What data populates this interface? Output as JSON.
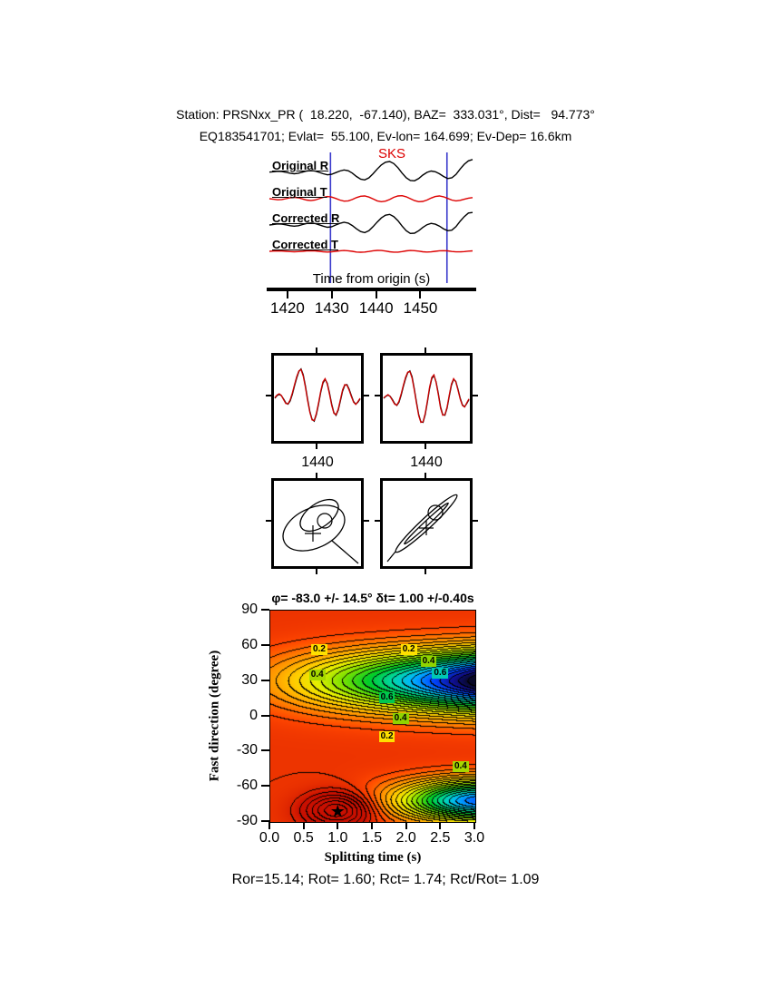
{
  "header": {
    "line1": "Station: PRSNxx_PR (  18.220,  -67.140), BAZ=  333.031°, Dist=   94.773°",
    "line2": "EQ183541701; Evlat=  55.100, Ev-lon= 164.699; Ev-Dep= 16.6km"
  },
  "footer": {
    "stats": "Ror=15.14; Rot= 1.60; Rct= 1.74; Rct/Rot= 1.09",
    "stats_values": {
      "Ror": 15.14,
      "Rot": 1.6,
      "Rct": 1.74,
      "Rct_over_Rot": 1.09
    }
  },
  "chart_data": [
    {
      "type": "line",
      "id": "seismogram-traces",
      "phase": "SKS",
      "phase_color": "#dd0000",
      "xlabel": "Time from origin (s)",
      "xticks": [
        1420,
        1430,
        1440,
        1450
      ],
      "xrange": [
        1415.3,
        1462.6
      ],
      "window": [
        1429.7,
        1456.0
      ],
      "window_color": "#3b3bcc",
      "traces": [
        {
          "label": "Original R",
          "color": "#000000",
          "values": [
            0.02,
            0.05,
            0.08,
            0.06,
            0.0,
            -0.06,
            -0.1,
            -0.06,
            0.02,
            0.1,
            0.14,
            0.1,
            0.0,
            -0.1,
            -0.18,
            -0.14,
            -0.02,
            0.1,
            0.18,
            0.12,
            -0.05,
            -0.3,
            -0.5,
            -0.55,
            -0.4,
            -0.1,
            0.25,
            0.55,
            0.75,
            0.8,
            0.65,
            0.35,
            -0.05,
            -0.4,
            -0.6,
            -0.62,
            -0.45,
            -0.2,
            0.0,
            0.1,
            0.05,
            -0.1,
            -0.3,
            -0.45,
            -0.4,
            -0.15,
            0.25,
            0.6,
            0.85,
            0.95
          ]
        },
        {
          "label": "Original T",
          "color": "#dd0000",
          "values": [
            0.0,
            -0.04,
            -0.08,
            -0.06,
            0.0,
            0.07,
            0.1,
            0.07,
            -0.02,
            -0.1,
            -0.14,
            -0.1,
            0.0,
            0.1,
            0.16,
            0.12,
            0.02,
            -0.1,
            -0.18,
            -0.16,
            -0.06,
            0.08,
            0.18,
            0.2,
            0.12,
            -0.02,
            -0.16,
            -0.22,
            -0.18,
            -0.06,
            0.1,
            0.2,
            0.22,
            0.14,
            0.0,
            -0.14,
            -0.22,
            -0.2,
            -0.1,
            0.05,
            0.16,
            0.2,
            0.14,
            0.02,
            -0.1,
            -0.16,
            -0.12,
            -0.04,
            0.04,
            0.08
          ]
        },
        {
          "label": "Corrected R",
          "color": "#000000",
          "values": [
            0.0,
            0.04,
            0.08,
            0.07,
            0.01,
            -0.05,
            -0.09,
            -0.05,
            0.03,
            0.11,
            0.15,
            0.11,
            0.01,
            -0.09,
            -0.17,
            -0.13,
            0.0,
            0.12,
            0.2,
            0.14,
            -0.04,
            -0.28,
            -0.48,
            -0.56,
            -0.42,
            -0.12,
            0.22,
            0.52,
            0.72,
            0.78,
            0.62,
            0.32,
            -0.08,
            -0.42,
            -0.62,
            -0.6,
            -0.42,
            -0.18,
            0.02,
            0.12,
            0.06,
            -0.08,
            -0.28,
            -0.42,
            -0.38,
            -0.12,
            0.28,
            0.62,
            0.88,
            0.92
          ]
        },
        {
          "label": "Corrected T",
          "color": "#dd0000",
          "values": [
            0.0,
            0.02,
            0.03,
            0.02,
            0.0,
            -0.02,
            -0.03,
            -0.02,
            0.0,
            0.03,
            0.04,
            0.03,
            0.0,
            -0.03,
            -0.05,
            -0.03,
            0.0,
            0.04,
            0.06,
            0.04,
            0.0,
            -0.05,
            -0.07,
            -0.05,
            -0.01,
            0.04,
            0.07,
            0.06,
            0.02,
            -0.03,
            -0.06,
            -0.06,
            -0.02,
            0.03,
            0.06,
            0.05,
            0.01,
            -0.03,
            -0.05,
            -0.04,
            0.0,
            0.04,
            0.05,
            0.03,
            -0.01,
            -0.04,
            -0.04,
            -0.02,
            0.01,
            0.03
          ]
        }
      ]
    },
    {
      "type": "line",
      "id": "corrected-overlay-panels",
      "panels": [
        {
          "xtick": "1440",
          "series": [
            {
              "name": "radial",
              "color": "#000000",
              "values": [
                0.0,
                0.08,
                0.12,
                0.08,
                -0.02,
                -0.14,
                -0.18,
                -0.08,
                0.12,
                0.38,
                0.62,
                0.82,
                0.9,
                0.72,
                0.38,
                -0.04,
                -0.4,
                -0.64,
                -0.7,
                -0.5,
                -0.18,
                0.18,
                0.46,
                0.58,
                0.46,
                0.16,
                -0.18,
                -0.44,
                -0.52,
                -0.36,
                -0.08,
                0.22,
                0.4,
                0.42,
                0.28,
                0.08,
                -0.1,
                -0.18,
                -0.12,
                -0.02
              ]
            },
            {
              "name": "transverse-shifted",
              "color": "#cc0000",
              "values": [
                0.02,
                0.1,
                0.14,
                0.09,
                -0.04,
                -0.16,
                -0.17,
                -0.05,
                0.16,
                0.42,
                0.66,
                0.84,
                0.88,
                0.68,
                0.34,
                -0.08,
                -0.43,
                -0.66,
                -0.68,
                -0.46,
                -0.14,
                0.22,
                0.5,
                0.6,
                0.44,
                0.12,
                -0.22,
                -0.46,
                -0.5,
                -0.33,
                -0.04,
                0.26,
                0.42,
                0.4,
                0.25,
                0.05,
                -0.12,
                -0.19,
                -0.1,
                0.0
              ]
            }
          ]
        },
        {
          "xtick": "1440",
          "series": [
            {
              "name": "radial",
              "color": "#000000",
              "values": [
                0.0,
                0.06,
                0.1,
                0.06,
                -0.04,
                -0.16,
                -0.22,
                -0.12,
                0.1,
                0.36,
                0.6,
                0.78,
                0.84,
                0.66,
                0.3,
                -0.12,
                -0.5,
                -0.72,
                -0.74,
                -0.5,
                -0.12,
                0.3,
                0.6,
                0.7,
                0.5,
                0.14,
                -0.26,
                -0.5,
                -0.52,
                -0.3,
                0.06,
                0.4,
                0.58,
                0.52,
                0.28,
                0.0,
                -0.2,
                -0.26,
                -0.16,
                -0.04
              ]
            },
            {
              "name": "transverse-shifted",
              "color": "#cc0000",
              "values": [
                0.01,
                0.07,
                0.11,
                0.05,
                -0.06,
                -0.18,
                -0.21,
                -0.09,
                0.14,
                0.4,
                0.64,
                0.8,
                0.82,
                0.62,
                0.26,
                -0.16,
                -0.53,
                -0.74,
                -0.72,
                -0.46,
                -0.08,
                0.34,
                0.64,
                0.72,
                0.48,
                0.1,
                -0.3,
                -0.52,
                -0.5,
                -0.27,
                0.1,
                0.44,
                0.6,
                0.5,
                0.25,
                -0.03,
                -0.22,
                -0.27,
                -0.14,
                -0.02
              ]
            }
          ]
        }
      ]
    },
    {
      "type": "scatter",
      "id": "particle-motion",
      "panels": [
        {
          "name": "particle-motion-original",
          "ellipses": [
            {
              "cx": 44,
              "cy": 52,
              "rx": 36,
              "ry": 22,
              "rot": -25
            },
            {
              "cx": 50,
              "cy": 38,
              "rx": 24,
              "ry": 13,
              "rot": -35
            }
          ],
          "circle": {
            "cx": 56,
            "cy": 44,
            "r": 8
          },
          "cross": {
            "cx": 43,
            "cy": 58,
            "size": 18
          },
          "tail": [
            [
              64,
              66
            ],
            [
              93,
              91
            ]
          ]
        },
        {
          "name": "particle-motion-corrected",
          "ellipses": [
            {
              "cx": 48,
              "cy": 47,
              "rx": 46,
              "ry": 6,
              "rot": -43
            },
            {
              "cx": 48,
              "cy": 47,
              "rx": 33,
              "ry": 2.5,
              "rot": -43
            }
          ],
          "circle": {
            "cx": 58,
            "cy": 35,
            "r": 8
          },
          "cross": {
            "cx": 48,
            "cy": 52,
            "size": 16
          },
          "tail": [
            [
              14,
              78
            ],
            [
              5,
              89
            ]
          ]
        }
      ]
    },
    {
      "type": "heatmap",
      "id": "splitting-misfit-surface",
      "title": "φ= -83.0 +/- 14.5° δt= 1.00 +/-0.40s",
      "xlabel": "Splitting time (s)",
      "ylabel": "Fast direction (degree)",
      "xticks": [
        "0.0",
        "0.5",
        "1.0",
        "1.5",
        "2.0",
        "2.5",
        "3.0"
      ],
      "yticks": [
        90,
        60,
        30,
        0,
        -30,
        -60,
        -90
      ],
      "xrange": [
        0,
        3
      ],
      "yrange": [
        -90,
        90
      ],
      "grid": false,
      "best": {
        "phi_deg": -83.0,
        "phi_err_deg": 14.5,
        "dt_s": 1.0,
        "dt_err_s": 0.4
      },
      "star_glyph": "★",
      "contour_interval": 0.04,
      "contour_labels": [
        {
          "text": "0.2",
          "dt": 0.73,
          "phi": 56,
          "bg": "#ffe000"
        },
        {
          "text": "0.2",
          "dt": 2.04,
          "phi": 56,
          "bg": "#ffe000"
        },
        {
          "text": "0.4",
          "dt": 2.33,
          "phi": 46,
          "bg": "#8fd400"
        },
        {
          "text": "0.6",
          "dt": 2.5,
          "phi": 36,
          "bg": "#00c8b4"
        },
        {
          "text": "0.4",
          "dt": 0.7,
          "phi": 34,
          "bg": "#a6d800"
        },
        {
          "text": "0.6",
          "dt": 1.72,
          "phi": 15,
          "bg": "#00c850"
        },
        {
          "text": "0.4",
          "dt": 1.92,
          "phi": -3,
          "bg": "#8fd400"
        },
        {
          "text": "0.2",
          "dt": 1.72,
          "phi": -18,
          "bg": "#ffe000"
        },
        {
          "text": "0.4",
          "dt": 2.8,
          "phi": -44,
          "bg": "#a6d800"
        }
      ],
      "field_model": {
        "base": 0.92,
        "valley1": {
          "phi": 30,
          "width": 26,
          "floor": 0.15,
          "gain": 0.85,
          "xpow": 1.1,
          "scale": 0.95
        },
        "valley2": {
          "phi": -72,
          "width": 18,
          "x0": 3.1,
          "xw": 1.2,
          "depth": 0.75
        },
        "peak": {
          "dt": 1.0,
          "phi": -80,
          "dtw": 0.5,
          "phiw": 15,
          "height": 0.3
        }
      },
      "colormap": [
        [
          0.0,
          8,
          8,
          40
        ],
        [
          0.07,
          16,
          16,
          150
        ],
        [
          0.15,
          0,
          70,
          255
        ],
        [
          0.24,
          0,
          180,
          255
        ],
        [
          0.32,
          0,
          215,
          170
        ],
        [
          0.42,
          0,
          205,
          40
        ],
        [
          0.52,
          120,
          225,
          0
        ],
        [
          0.62,
          230,
          240,
          0
        ],
        [
          0.7,
          255,
          205,
          0
        ],
        [
          0.79,
          255,
          145,
          0
        ],
        [
          0.88,
          255,
          70,
          0
        ],
        [
          1.0,
          200,
          15,
          0
        ]
      ]
    }
  ]
}
